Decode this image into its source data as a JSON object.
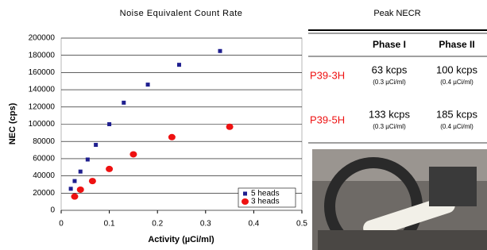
{
  "chart_data": {
    "type": "scatter",
    "title": "Noise Equivalent Count Rate",
    "x_label": "Activity (µCi/ml)",
    "y_label": "NEC (cps)",
    "xlim": [
      0,
      0.5
    ],
    "xticks": [
      0,
      0.1,
      0.2,
      0.3,
      0.4,
      0.5
    ],
    "ylim": [
      0,
      200000
    ],
    "yticks": [
      0,
      20000,
      40000,
      60000,
      80000,
      100000,
      120000,
      140000,
      160000,
      180000,
      200000
    ],
    "grid": true,
    "legend": "lower right",
    "series": [
      {
        "name": "5 heads",
        "color": "#1f1f8f",
        "marker": "square",
        "x": [
          0.02,
          0.028,
          0.04,
          0.055,
          0.072,
          0.1,
          0.13,
          0.18,
          0.245,
          0.33
        ],
        "values": [
          25000,
          34000,
          45000,
          59000,
          76000,
          100000,
          125000,
          146000,
          169000,
          185000
        ]
      },
      {
        "name": "3 heads",
        "color": "#ee1111",
        "marker": "circle",
        "x": [
          0.028,
          0.04,
          0.065,
          0.1,
          0.15,
          0.23,
          0.35
        ],
        "values": [
          16000,
          24000,
          34000,
          48000,
          65000,
          85000,
          97000
        ]
      }
    ]
  },
  "table": {
    "title": "Peak NECR",
    "columns": [
      "Phase I",
      "Phase II"
    ],
    "rows": [
      {
        "label": "P39-3H",
        "cells": [
          {
            "value": "63 kcps",
            "note": "(0.3 µCi/ml)"
          },
          {
            "value": "100 kcps",
            "note": "(0.4 µCi/ml)"
          }
        ]
      },
      {
        "label": "P39-5H",
        "cells": [
          {
            "value": "133 kcps",
            "note": "(0.3 µCi/ml)"
          },
          {
            "value": "185 kcps",
            "note": "(0.4 µCi/ml)"
          }
        ]
      }
    ]
  }
}
